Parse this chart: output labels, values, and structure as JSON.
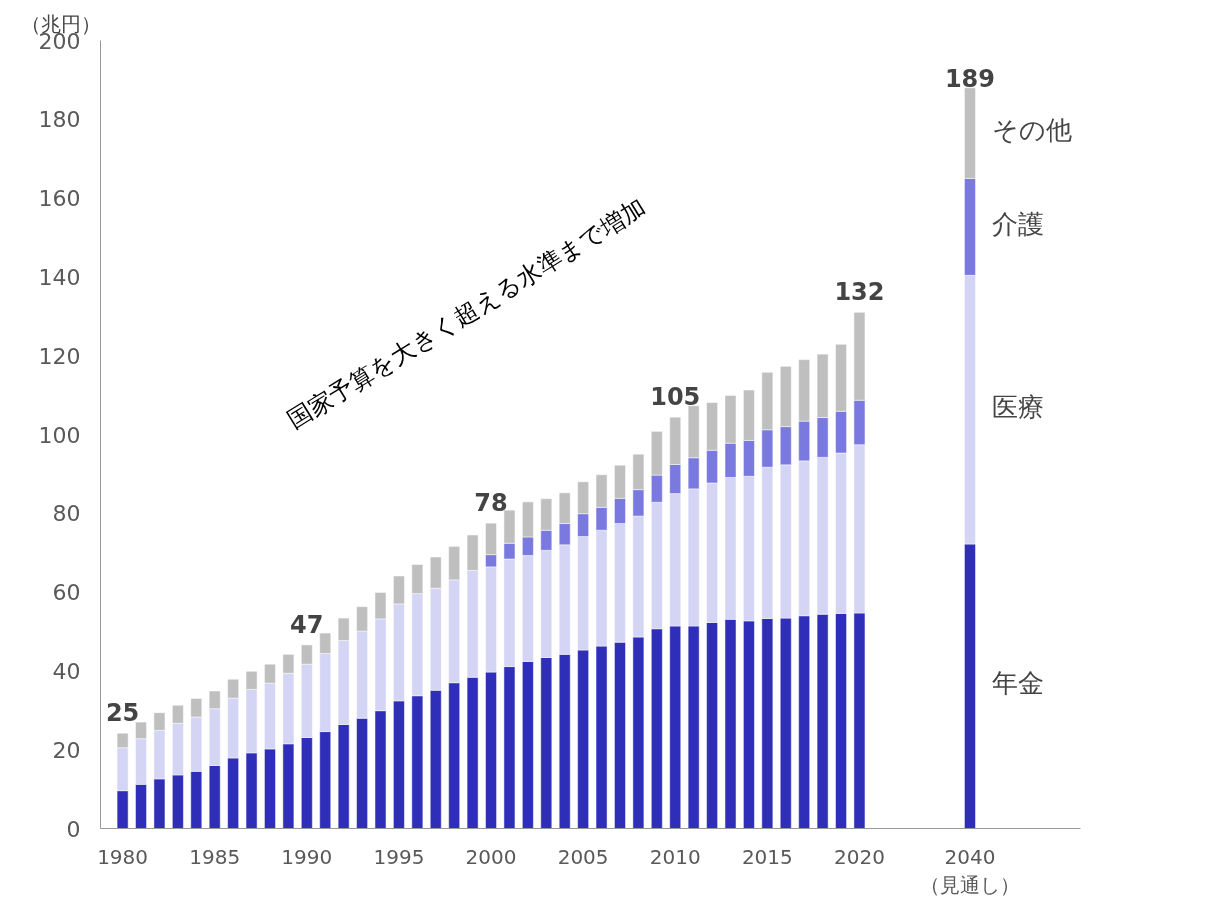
{
  "chart_data": {
    "type": "bar",
    "stacked": true,
    "ylabel": "（兆円）",
    "categories": [
      "1980",
      null,
      null,
      null,
      null,
      "1985",
      null,
      null,
      null,
      null,
      "1990",
      null,
      null,
      null,
      null,
      "1995",
      null,
      null,
      null,
      null,
      "2000",
      null,
      null,
      null,
      null,
      "2005",
      null,
      null,
      null,
      null,
      "2010",
      null,
      null,
      null,
      null,
      "2015",
      null,
      null,
      null,
      null,
      "2020",
      null,
      null,
      null,
      null,
      null,
      "2040\n（見通し）"
    ],
    "series": [
      {
        "name": "年金",
        "color": "#2e2eb8",
        "values": [
          9.6,
          11.2,
          12.6,
          13.6,
          14.5,
          16.0,
          17.9,
          19.2,
          20.2,
          21.5,
          23.1,
          24.6,
          26.4,
          28.0,
          29.9,
          32.4,
          33.7,
          35.1,
          37.0,
          38.4,
          39.7,
          41.1,
          42.4,
          43.4,
          44.2,
          45.3,
          46.3,
          47.3,
          48.6,
          50.7,
          51.4,
          51.4,
          52.3,
          53.1,
          52.7,
          53.3,
          53.4,
          54.0,
          54.4,
          54.6,
          54.7,
          null,
          null,
          null,
          null,
          null,
          72.2
        ]
      },
      {
        "name": "医療",
        "color": "#d4d4f4",
        "values": [
          10.9,
          11.6,
          12.3,
          13.1,
          13.8,
          14.4,
          15.2,
          16.1,
          16.7,
          17.9,
          18.6,
          19.8,
          21.3,
          22.1,
          23.3,
          24.6,
          25.9,
          25.9,
          26.1,
          27.1,
          26.7,
          27.3,
          26.9,
          27.2,
          27.8,
          28.8,
          29.4,
          30.1,
          30.7,
          32.1,
          33.6,
          34.8,
          35.4,
          36.0,
          36.7,
          38.4,
          38.9,
          39.3,
          39.8,
          40.7,
          42.7,
          null,
          null,
          null,
          null,
          null,
          68.2
        ]
      },
      {
        "name": "介護",
        "color": "#7979df",
        "values": [
          null,
          null,
          null,
          null,
          null,
          null,
          null,
          null,
          null,
          null,
          null,
          null,
          null,
          null,
          null,
          null,
          null,
          null,
          null,
          null,
          3.1,
          4.0,
          4.7,
          5.1,
          5.4,
          5.8,
          5.8,
          6.4,
          6.7,
          6.9,
          7.4,
          7.9,
          8.3,
          8.7,
          9.1,
          9.5,
          9.7,
          10.1,
          10.1,
          10.6,
          11.3,
          null,
          null,
          null,
          null,
          null,
          24.6
        ]
      },
      {
        "name": "その他",
        "color": "#bfbfbf",
        "values": [
          3.7,
          4.2,
          4.5,
          4.6,
          4.7,
          4.5,
          4.8,
          4.6,
          4.8,
          4.8,
          4.9,
          5.2,
          5.7,
          6.2,
          6.7,
          7.1,
          7.4,
          7.9,
          8.5,
          9.0,
          8.0,
          8.4,
          8.9,
          8.0,
          7.8,
          8.1,
          8.3,
          8.4,
          9.0,
          11.1,
          12.0,
          13.2,
          12.1,
          12.1,
          12.8,
          14.6,
          15.3,
          15.6,
          16.1,
          17.0,
          22.3,
          null,
          null,
          null,
          null,
          null,
          23.0
        ]
      }
    ],
    "totals": [
      "25",
      null,
      null,
      null,
      null,
      null,
      null,
      null,
      null,
      null,
      "47",
      null,
      null,
      null,
      null,
      null,
      null,
      null,
      null,
      null,
      "78",
      null,
      null,
      null,
      null,
      null,
      null,
      null,
      null,
      null,
      "105",
      null,
      null,
      null,
      null,
      null,
      null,
      null,
      null,
      null,
      "132",
      null,
      null,
      null,
      null,
      null,
      "189"
    ],
    "ylim": [
      0,
      200
    ],
    "yticks": [
      0,
      20,
      40,
      60,
      80,
      100,
      120,
      140,
      160,
      180,
      200
    ],
    "grid": false,
    "legend": false,
    "annotations": [
      "国家予算を大きく超える水準まで増加"
    ]
  }
}
